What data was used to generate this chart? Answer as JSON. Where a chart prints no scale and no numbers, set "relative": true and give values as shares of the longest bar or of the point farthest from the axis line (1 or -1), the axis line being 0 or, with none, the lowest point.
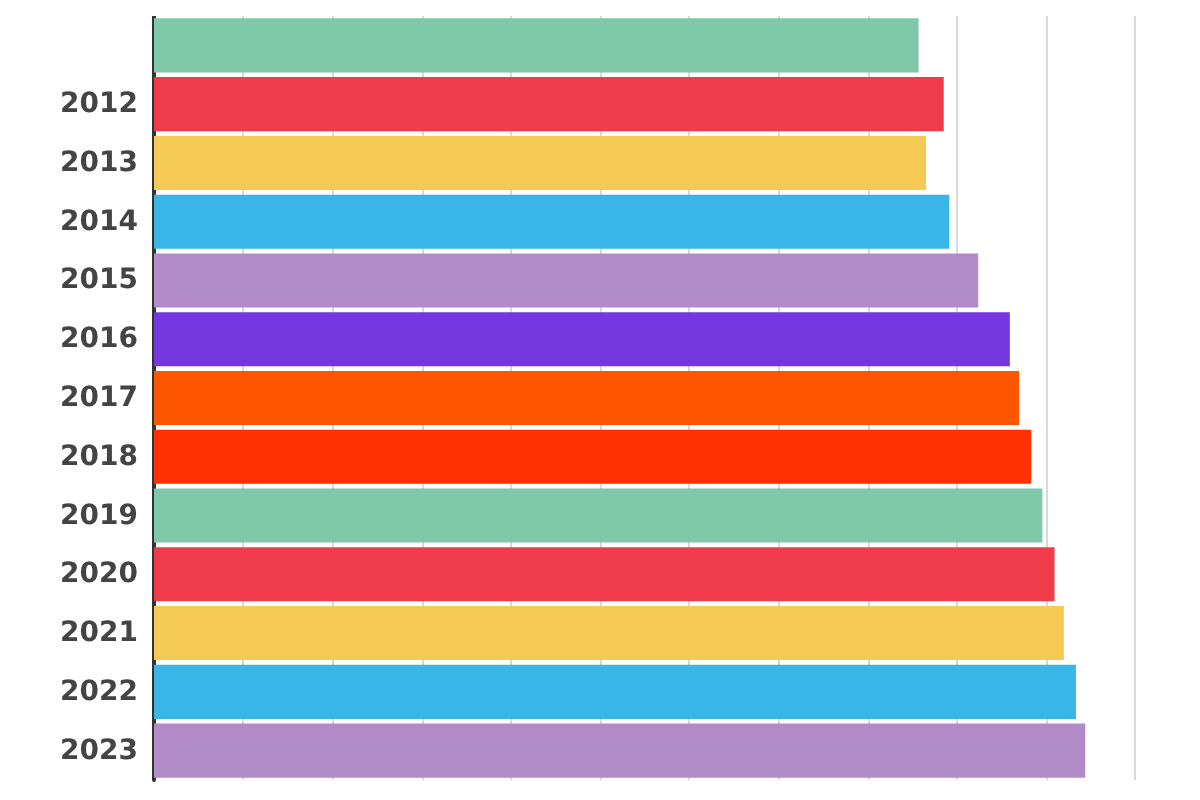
{
  "chart_data": {
    "type": "bar",
    "orientation": "horizontal",
    "relative": true,
    "grid": "x",
    "categories": [
      null,
      "2012",
      "2013",
      "2014",
      "2015",
      "2016",
      "2017",
      "2018",
      "2019",
      "2020",
      "2021",
      "2022",
      "2023"
    ],
    "values": [
      0.821,
      0.848,
      0.829,
      0.854,
      0.885,
      0.919,
      0.929,
      0.942,
      0.954,
      0.967,
      0.977,
      0.99,
      1
    ],
    "colors": [
      "#7fc8a9",
      "#ef3b4a",
      "#f4ca55",
      "#38b6e8",
      "#b18bc8",
      "#7437e0",
      "#ff5700",
      "#ff3100",
      "#7fc8a9",
      "#ef3b4a",
      "#f4ca55",
      "#38b6e8",
      "#b18bc8"
    ]
  }
}
